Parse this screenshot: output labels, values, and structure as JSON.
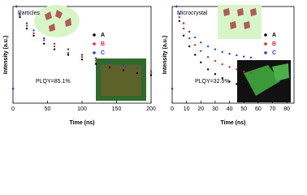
{
  "chart_data": [
    {
      "type": "scatter",
      "xlabel": "Time (ns)",
      "ylabel": "Intensity (a.u.)",
      "annotations": [
        "Particles",
        "PLQY=85.1%"
      ],
      "x": [
        0,
        5,
        10,
        20,
        30,
        45,
        60,
        80,
        100,
        120,
        140,
        160,
        180,
        200
      ],
      "series": [
        {
          "name": "A",
          "color": "#000000",
          "values": [
            0.02,
            1,
            0.6,
            0.35,
            0.25,
            0.17,
            0.13,
            0.1,
            0.08,
            0.065,
            0.055,
            0.048,
            0.042,
            0.038
          ]
        },
        {
          "name": "B",
          "color": "#e8202a",
          "values": [
            0.02,
            1,
            0.65,
            0.4,
            0.28,
            0.2,
            0.15,
            0.11,
            0.09,
            0.075,
            0.062,
            0.054,
            0.047,
            0.042
          ]
        },
        {
          "name": "C",
          "color": "#2040e0",
          "values": [
            0.02,
            1,
            0.7,
            0.45,
            0.32,
            0.22,
            0.17,
            0.13,
            0.1,
            0.085,
            0.07,
            0.06,
            0.052,
            0.046
          ]
        }
      ],
      "xlim": [
        0,
        200
      ],
      "xticks": [
        0,
        50,
        100,
        150,
        200
      ],
      "ylim": [
        0.01,
        1
      ],
      "log_y": true
    },
    {
      "type": "scatter",
      "xlabel": "Time (ns)",
      "ylabel": "Intensity (a.u.)",
      "annotations": [
        "Microcrystal",
        "PLQY=32.5%"
      ],
      "x": [
        0,
        3,
        5,
        8,
        12,
        16,
        20,
        25,
        30,
        35,
        40,
        45,
        50,
        55
      ],
      "series": [
        {
          "name": "A",
          "color": "#000000",
          "values": [
            0.02,
            1,
            0.5,
            0.25,
            0.15,
            0.1,
            0.07,
            0.05,
            0.04,
            0.033,
            0.028,
            0.025,
            0.022,
            0.02
          ]
        },
        {
          "name": "B",
          "color": "#e8202a",
          "values": [
            0.02,
            1,
            0.6,
            0.35,
            0.22,
            0.16,
            0.12,
            0.09,
            0.075,
            0.064,
            0.056,
            0.05,
            0.045,
            0.042
          ]
        },
        {
          "name": "C",
          "color": "#2040e0",
          "values": [
            0.02,
            1,
            0.7,
            0.45,
            0.3,
            0.23,
            0.18,
            0.15,
            0.13,
            0.115,
            0.105,
            0.098,
            0.092,
            0.088
          ]
        }
      ],
      "xlim": [
        0,
        85
      ],
      "xticks": [
        0,
        10,
        20,
        30,
        40,
        50,
        60,
        70,
        80
      ],
      "ylim": [
        0.01,
        1
      ],
      "log_y": true
    }
  ]
}
